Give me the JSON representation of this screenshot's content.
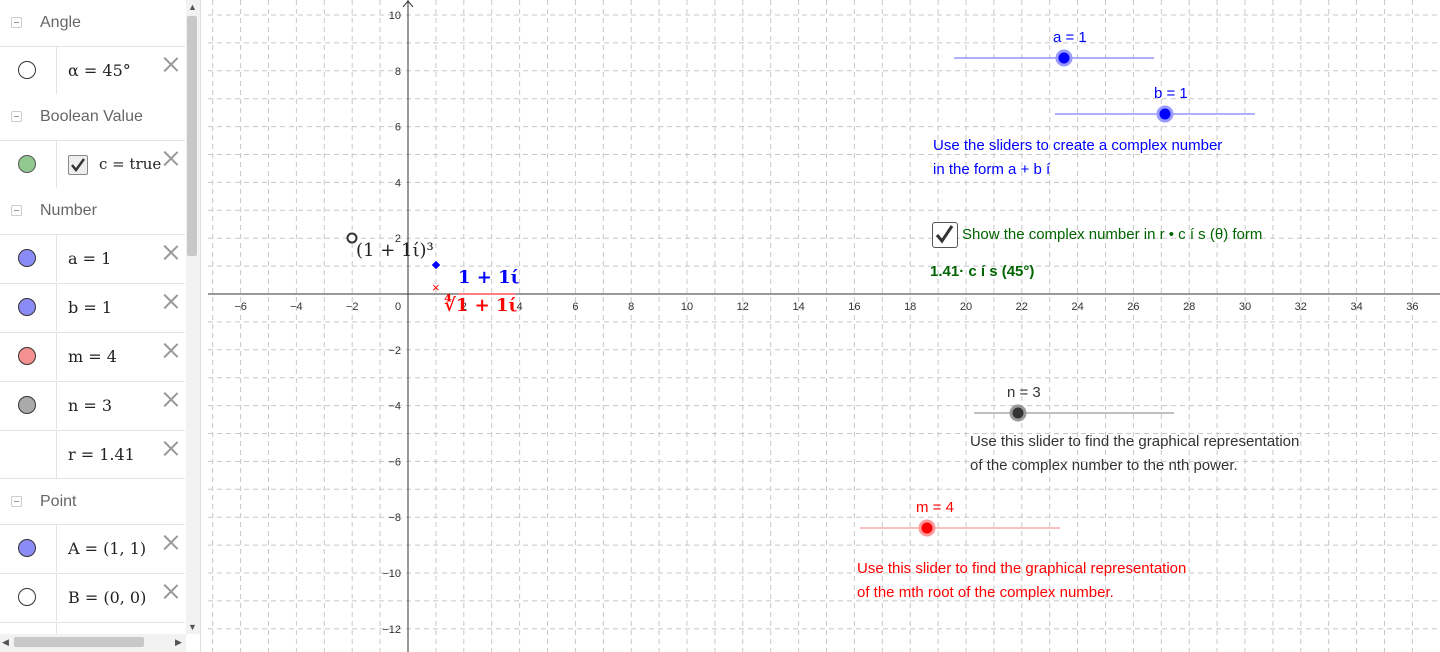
{
  "algebra": {
    "categories": {
      "angle": "Angle",
      "boolean": "Boolean Value",
      "number": "Number",
      "point": "Point"
    },
    "rows": {
      "alpha": "α = 45°",
      "c": "c = true",
      "a": "a = 1",
      "b": "b = 1",
      "m": "m = 4",
      "n": "n = 3",
      "r": "r = 1.41",
      "A": "A = (1, 1)",
      "B": "B = (0, 0)"
    },
    "colors": {
      "a": "#7f7ff0",
      "b": "#7f7ff0",
      "m": "#f07f7f",
      "n": "#a0a0a0",
      "A": "#7f7ff0",
      "c": "#80c080"
    }
  },
  "graphics": {
    "x_ticks": [
      "-6",
      "-4",
      "-2",
      "0",
      "2",
      "4",
      "6",
      "8",
      "10",
      "12",
      "14",
      "16",
      "18",
      "20",
      "22",
      "24",
      "26",
      "28",
      "30",
      "32",
      "34",
      "36"
    ],
    "y_ticks": [
      "10",
      "8",
      "6",
      "4",
      "2",
      "-2",
      "-4",
      "-6",
      "-8",
      "-10",
      "-12"
    ],
    "sliders": {
      "a": {
        "label": "a = 1",
        "value": 1,
        "color": "#0000ff"
      },
      "b": {
        "label": "b = 1",
        "value": 1,
        "color": "#0000ff"
      },
      "n": {
        "label": "n = 3",
        "value": 3,
        "color": "#333333"
      },
      "m": {
        "label": "m = 4",
        "value": 4,
        "color": "#ff0000"
      }
    },
    "texts": {
      "instr_ab_1": "Use the sliders to create a complex number",
      "instr_ab_2": "in the form a + b í",
      "show_checkbox": "Show the complex number in r • c í s (θ) form",
      "polar": "1.41· c í s (45°)",
      "instr_n_1": "Use this slider to find the graphical representation",
      "instr_n_2": "of the complex number to the nth power.",
      "instr_m_1": "Use this slider to find the graphical representation",
      "instr_m_2": "of the mth root of the complex number.",
      "power_label": "(1 + 1ί)³",
      "z_label": "1 + 1ί",
      "root_label": "∜1 + 1ί"
    },
    "colors": {
      "blue": "#0000ff",
      "green": "#006400",
      "gray": "#333333",
      "red": "#ff0000"
    }
  }
}
